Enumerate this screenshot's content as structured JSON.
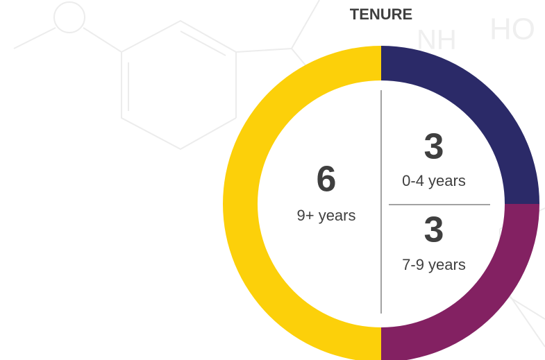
{
  "chart_data": {
    "type": "donut",
    "title": "TENURE",
    "categories": [
      "0-4 years",
      "7-9 years",
      "9+ years"
    ],
    "values": [
      3,
      3,
      6
    ],
    "colors": [
      "#2b2a68",
      "#832162",
      "#fcd00a"
    ]
  }
}
